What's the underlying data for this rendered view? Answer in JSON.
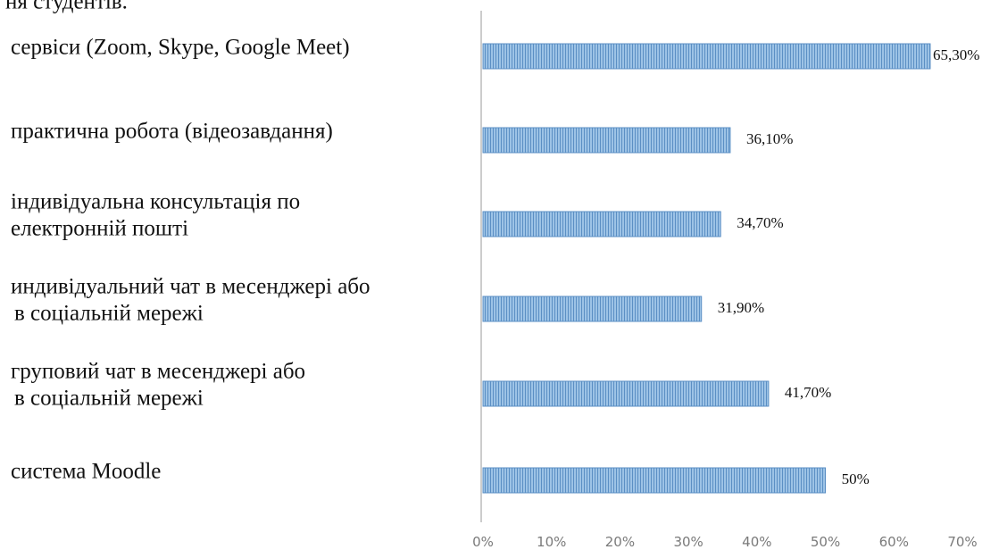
{
  "header_fragment": "ня студентів.",
  "chart_data": {
    "type": "bar",
    "orientation": "horizontal",
    "categories": [
      [
        "сервіси  (Zoom,  Skype, Google  Meet)"
      ],
      [
        "практична робота  (відеозавдання)"
      ],
      [
        "індивідуальна консультація по",
        "електронній пошті"
      ],
      [
        "индивідуальний чат в месенджері або",
        "в соціальній мережі"
      ],
      [
        "груповий чат в месенджері або",
        "в соціальній мережі"
      ],
      [
        "система Moodle"
      ]
    ],
    "values": [
      65.3,
      36.1,
      34.7,
      31.9,
      41.7,
      50
    ],
    "value_labels": [
      "65,30%",
      "36,10%",
      "34,70%",
      "31,90%",
      "41,70%",
      "50%"
    ],
    "x_ticks": [
      "0%",
      "10%",
      "20%",
      "30%",
      "40%",
      "50%",
      "60%",
      "70%"
    ],
    "xlim": [
      0,
      70
    ],
    "bar_color": "#9dc3e6",
    "bar_edge_color": "#5b8fc4",
    "grid": false
  }
}
